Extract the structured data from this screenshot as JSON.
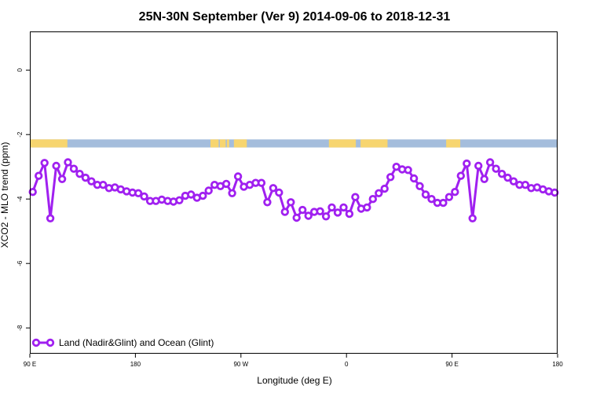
{
  "chart_data": {
    "type": "line",
    "title": "25N-30N September (Ver 9)   2014-09-06 to 2018-12-31",
    "xlabel": "Longitude (deg E)",
    "ylabel": "XCO2 - MLO trend (ppm)",
    "x_ticks": [
      {
        "value": 90,
        "label": "90 E"
      },
      {
        "value": 180,
        "label": "180"
      },
      {
        "value": 270,
        "label": "90 W"
      },
      {
        "value": 360,
        "label": "0"
      },
      {
        "value": 450,
        "label": "90 E"
      },
      {
        "value": 540,
        "label": "180"
      }
    ],
    "y_ticks": [
      {
        "value": 0,
        "label": "0"
      },
      {
        "value": -2,
        "label": "-2"
      },
      {
        "value": -4,
        "label": "-4"
      },
      {
        "value": -6,
        "label": "-6"
      },
      {
        "value": -8,
        "label": "-8"
      }
    ],
    "xlim": [
      90,
      540
    ],
    "ylim": [
      -8.8,
      1.2
    ],
    "grid": false,
    "legend_position": "bottom-left",
    "surface_band": {
      "y_range": [
        -2.4,
        -2.15
      ],
      "ocean_color": "#a4bddc",
      "land_color": "#f7d56f",
      "land_segments": [
        [
          90,
          122
        ],
        [
          244,
          251
        ],
        [
          252,
          257
        ],
        [
          258,
          260
        ],
        [
          264,
          275
        ],
        [
          345,
          368
        ],
        [
          372,
          395
        ],
        [
          445,
          457
        ]
      ]
    },
    "series": [
      {
        "name": "Land (Nadir&Glint) and Ocean (Glint)",
        "color": "#a020f0",
        "x": [
          92.5,
          97.5,
          102.5,
          107.5,
          112.5,
          117.5,
          122.5,
          127.5,
          132.5,
          137.5,
          142.5,
          147.5,
          152.5,
          157.5,
          162.5,
          167.5,
          172.5,
          177.5,
          182.5,
          187.5,
          192.5,
          197.5,
          202.5,
          207.5,
          212.5,
          217.5,
          222.5,
          227.5,
          232.5,
          237.5,
          242.5,
          247.5,
          252.5,
          257.5,
          262.5,
          267.5,
          272.5,
          277.5,
          282.5,
          287.5,
          292.5,
          297.5,
          302.5,
          307.5,
          312.5,
          317.5,
          322.5,
          327.5,
          332.5,
          337.5,
          342.5,
          347.5,
          352.5,
          357.5,
          362.5,
          367.5,
          372.5,
          377.5,
          382.5,
          387.5,
          392.5,
          397.5,
          402.5,
          407.5,
          412.5,
          417.5,
          422.5,
          427.5,
          432.5,
          437.5,
          442.5,
          447.5,
          452.5,
          457.5,
          462.5,
          467.5,
          472.5,
          477.5,
          482.5,
          487.5,
          492.5,
          497.5,
          502.5,
          507.5,
          512.5,
          517.5,
          522.5,
          527.5,
          532.5,
          537.5
        ],
        "values": [
          -3.78,
          -3.28,
          -2.88,
          -4.6,
          -2.97,
          -3.38,
          -2.86,
          -3.06,
          -3.22,
          -3.34,
          -3.45,
          -3.56,
          -3.56,
          -3.66,
          -3.64,
          -3.7,
          -3.76,
          -3.8,
          -3.82,
          -3.92,
          -4.06,
          -4.06,
          -4.02,
          -4.06,
          -4.08,
          -4.04,
          -3.9,
          -3.86,
          -3.96,
          -3.9,
          -3.74,
          -3.56,
          -3.6,
          -3.53,
          -3.82,
          -3.3,
          -3.62,
          -3.56,
          -3.5,
          -3.5,
          -4.1,
          -3.66,
          -3.8,
          -4.4,
          -4.1,
          -4.58,
          -4.34,
          -4.52,
          -4.4,
          -4.38,
          -4.54,
          -4.26,
          -4.42,
          -4.26,
          -4.46,
          -3.94,
          -4.3,
          -4.26,
          -4.0,
          -3.82,
          -3.68,
          -3.32,
          -3.0,
          -3.08,
          -3.1,
          -3.36,
          -3.6,
          -3.86,
          -4.0,
          -4.12,
          -4.12,
          -3.94,
          -3.78,
          -3.28,
          -2.9,
          -4.6,
          -2.97,
          -3.38,
          -2.86,
          -3.06,
          -3.22,
          -3.34,
          -3.45,
          -3.56,
          -3.56,
          -3.66,
          -3.64,
          -3.7,
          -3.76,
          -3.8
        ]
      }
    ]
  }
}
